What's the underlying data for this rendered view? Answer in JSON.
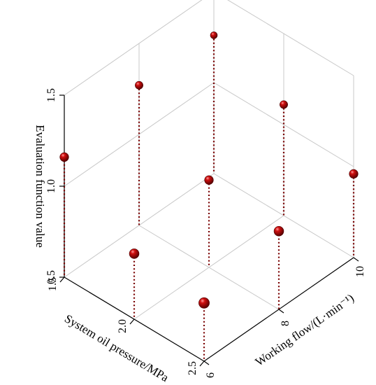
{
  "chart_data": {
    "type": "scatter",
    "variant": "3d-stem",
    "xlabel": "System oil pressure/MPa",
    "ylabel": "Working flow/(L·min⁻¹)",
    "zlabel": "Evaluation function value",
    "xlim": [
      1.5,
      2.5
    ],
    "ylim": [
      6,
      10
    ],
    "zlim": [
      0.5,
      1.5
    ],
    "xticks": [
      "1.5",
      "2.0",
      "2.5"
    ],
    "yticks": [
      "6",
      "8",
      "10"
    ],
    "zticks": [
      "0.5",
      "1.0",
      "1.5"
    ],
    "grid": true,
    "marker_color": "#b00000",
    "stem_color": "#7a0000",
    "points": [
      {
        "x": 1.5,
        "y": 6,
        "z": 1.16
      },
      {
        "x": 1.5,
        "y": 8,
        "z": 1.27
      },
      {
        "x": 1.5,
        "y": 10,
        "z": 1.26
      },
      {
        "x": 2.0,
        "y": 6,
        "z": 0.86
      },
      {
        "x": 2.0,
        "y": 8,
        "z": 0.98
      },
      {
        "x": 2.0,
        "y": 10,
        "z": 1.11
      },
      {
        "x": 2.5,
        "y": 6,
        "z": 0.82
      },
      {
        "x": 2.5,
        "y": 8,
        "z": 0.93
      },
      {
        "x": 2.5,
        "y": 10,
        "z": 0.96
      }
    ]
  }
}
